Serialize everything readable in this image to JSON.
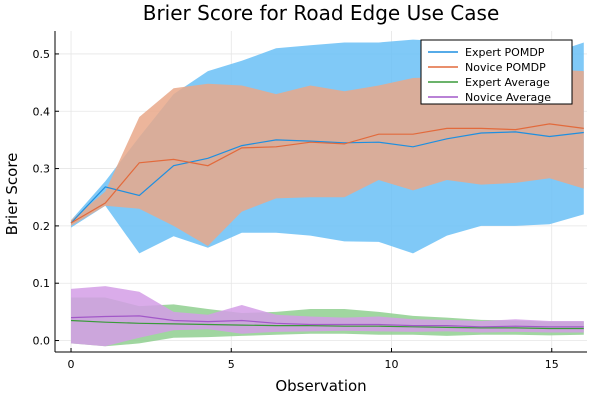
{
  "chart_data": {
    "type": "line",
    "title": "Brier Score for Road Edge Use Case",
    "xlabel": "Observation",
    "ylabel": "Brier Score",
    "xlim": [
      -0.5,
      16.1
    ],
    "ylim": [
      -0.02,
      0.54
    ],
    "xticks": [
      0,
      5,
      10,
      15
    ],
    "yticks": [
      0.0,
      0.1,
      0.2,
      0.3,
      0.4,
      0.5
    ],
    "xtick_labels": [
      "0",
      "5",
      "10",
      "15"
    ],
    "ytick_labels": [
      "0.0",
      "0.1",
      "0.2",
      "0.3",
      "0.4",
      "0.5"
    ],
    "grid": true,
    "legend_position": "top-right",
    "x": [
      0,
      1.07,
      2.13,
      3.2,
      4.27,
      5.33,
      6.4,
      7.47,
      8.53,
      9.6,
      10.67,
      11.73,
      12.8,
      13.87,
      14.93,
      16
    ],
    "series": [
      {
        "name": "Expert POMDP",
        "color": "#1e8fe0",
        "band_color": "#6ac0f6",
        "values": [
          0.205,
          0.268,
          0.253,
          0.305,
          0.318,
          0.34,
          0.35,
          0.348,
          0.345,
          0.346,
          0.338,
          0.352,
          0.362,
          0.364,
          0.356,
          0.363
        ],
        "lower": [
          0.197,
          0.235,
          0.152,
          0.182,
          0.162,
          0.188,
          0.188,
          0.183,
          0.173,
          0.172,
          0.152,
          0.183,
          0.2,
          0.2,
          0.203,
          0.22
        ],
        "upper": [
          0.21,
          0.278,
          0.355,
          0.43,
          0.47,
          0.488,
          0.51,
          0.515,
          0.52,
          0.52,
          0.525,
          0.522,
          0.522,
          0.52,
          0.5,
          0.52
        ]
      },
      {
        "name": "Novice POMDP",
        "color": "#e26a3c",
        "band_color": "#e9a889",
        "values": [
          0.205,
          0.24,
          0.31,
          0.316,
          0.305,
          0.336,
          0.338,
          0.346,
          0.343,
          0.36,
          0.36,
          0.37,
          0.37,
          0.368,
          0.378,
          0.37
        ],
        "lower": [
          0.2,
          0.235,
          0.23,
          0.2,
          0.165,
          0.225,
          0.248,
          0.25,
          0.25,
          0.28,
          0.262,
          0.28,
          0.272,
          0.275,
          0.283,
          0.265
        ],
        "upper": [
          0.21,
          0.26,
          0.39,
          0.44,
          0.448,
          0.445,
          0.43,
          0.445,
          0.435,
          0.445,
          0.458,
          0.46,
          0.465,
          0.47,
          0.473,
          0.47
        ]
      },
      {
        "name": "Expert Average",
        "color": "#3a9a3a",
        "band_color": "#8fcf8f",
        "values": [
          0.035,
          0.032,
          0.03,
          0.029,
          0.028,
          0.027,
          0.026,
          0.026,
          0.025,
          0.025,
          0.024,
          0.023,
          0.022,
          0.022,
          0.021,
          0.021
        ],
        "lower": [
          -0.005,
          -0.01,
          -0.005,
          0.005,
          0.006,
          0.008,
          0.01,
          0.012,
          0.012,
          0.01,
          0.01,
          0.008,
          0.01,
          0.01,
          0.009,
          0.01
        ],
        "upper": [
          0.075,
          0.075,
          0.06,
          0.063,
          0.055,
          0.048,
          0.05,
          0.055,
          0.055,
          0.05,
          0.043,
          0.04,
          0.036,
          0.035,
          0.033,
          0.033
        ]
      },
      {
        "name": "Novice Average",
        "color": "#a258c8",
        "band_color": "#d49ee6",
        "values": [
          0.04,
          0.042,
          0.043,
          0.035,
          0.033,
          0.035,
          0.03,
          0.028,
          0.028,
          0.028,
          0.026,
          0.026,
          0.024,
          0.025,
          0.024,
          0.024
        ],
        "lower": [
          -0.005,
          -0.01,
          0.005,
          0.018,
          0.02,
          0.012,
          0.015,
          0.016,
          0.017,
          0.016,
          0.015,
          0.016,
          0.014,
          0.015,
          0.014,
          0.014
        ],
        "upper": [
          0.09,
          0.095,
          0.085,
          0.05,
          0.045,
          0.062,
          0.045,
          0.042,
          0.04,
          0.042,
          0.037,
          0.036,
          0.034,
          0.037,
          0.034,
          0.034
        ]
      }
    ]
  }
}
